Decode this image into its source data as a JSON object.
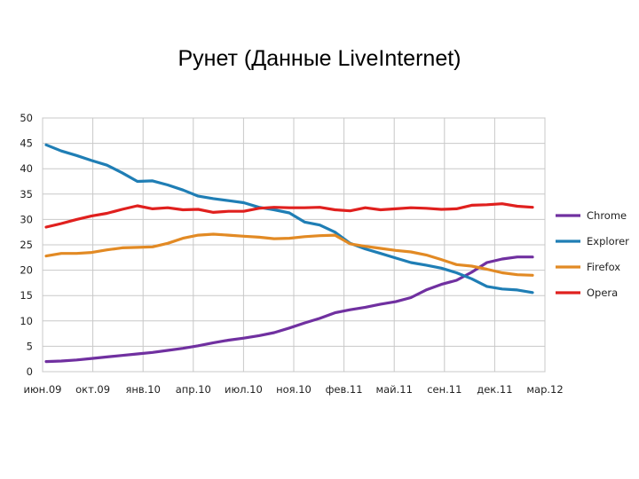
{
  "slide": {
    "title": "Рунет (Данные LiveInternet)"
  },
  "chart_data": {
    "type": "line",
    "title": "",
    "xlabel": "",
    "ylabel": "",
    "ylim": [
      0,
      50
    ],
    "yticks": [
      0,
      5,
      10,
      15,
      20,
      25,
      30,
      35,
      40,
      45,
      50
    ],
    "x_tick_labels": [
      "июн.09",
      "окт.09",
      "янв.10",
      "апр.10",
      "июл.10",
      "ноя.10",
      "фев.11",
      "май.11",
      "сен.11",
      "дек.11",
      "мар.12"
    ],
    "x": [
      "июн.09",
      "июл.09",
      "авг.09",
      "сен.09",
      "окт.09",
      "ноя.09",
      "дек.09",
      "янв.10",
      "фев.10",
      "мар.10",
      "апр.10",
      "май.10",
      "июн.10",
      "июл.10",
      "авг.10",
      "сен.10",
      "окт.10",
      "ноя.10",
      "дек.10",
      "янв.11",
      "фев.11",
      "мар.11",
      "апр.11",
      "май.11",
      "июн.11",
      "июл.11",
      "авг.11",
      "сен.11",
      "окт.11",
      "ноя.11",
      "дек.11",
      "янв.12",
      "фев.12"
    ],
    "grid": true,
    "legend_position": "right",
    "series": [
      {
        "name": "Chrome",
        "color": "#7030A0",
        "values": [
          2.0,
          2.1,
          2.3,
          2.6,
          2.9,
          3.2,
          3.5,
          3.8,
          4.2,
          4.6,
          5.1,
          5.7,
          6.2,
          6.6,
          7.1,
          7.7,
          8.6,
          9.6,
          10.5,
          11.6,
          12.2,
          12.7,
          13.3,
          13.8,
          14.6,
          16.1,
          17.2,
          18.0,
          19.6,
          21.5,
          22.2,
          22.6,
          22.6
        ]
      },
      {
        "name": "Explorer",
        "color": "#1F7EB5",
        "values": [
          44.7,
          43.5,
          42.6,
          41.6,
          40.7,
          39.2,
          37.5,
          37.6,
          36.8,
          35.8,
          34.6,
          34.1,
          33.7,
          33.3,
          32.4,
          31.9,
          31.3,
          29.5,
          28.9,
          27.5,
          25.3,
          24.2,
          23.3,
          22.4,
          21.5,
          21.0,
          20.4,
          19.5,
          18.3,
          16.8,
          16.3,
          16.1,
          15.6
        ]
      },
      {
        "name": "Firefox",
        "color": "#E28A24",
        "values": [
          22.8,
          23.3,
          23.3,
          23.5,
          24.0,
          24.4,
          24.5,
          24.6,
          25.3,
          26.3,
          26.9,
          27.1,
          26.9,
          26.7,
          26.5,
          26.2,
          26.3,
          26.6,
          26.8,
          26.9,
          25.2,
          24.7,
          24.3,
          23.9,
          23.6,
          23.0,
          22.1,
          21.1,
          20.8,
          20.2,
          19.5,
          19.1,
          19.0
        ]
      },
      {
        "name": "Opera",
        "color": "#E0201E",
        "values": [
          28.5,
          29.2,
          30.0,
          30.7,
          31.2,
          32.0,
          32.7,
          32.1,
          32.3,
          31.9,
          32.0,
          31.4,
          31.6,
          31.6,
          32.2,
          32.4,
          32.3,
          32.3,
          32.4,
          31.9,
          31.7,
          32.3,
          31.9,
          32.1,
          32.3,
          32.2,
          32.0,
          32.1,
          32.8,
          32.9,
          33.1,
          32.6,
          32.4
        ]
      }
    ]
  }
}
